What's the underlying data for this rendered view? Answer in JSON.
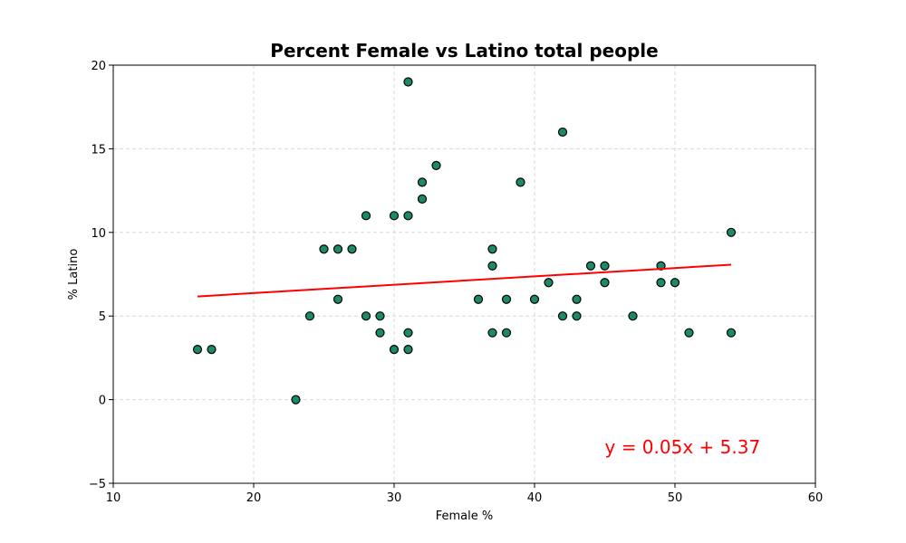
{
  "chart_data": {
    "type": "scatter",
    "title": "Percent Female vs Latino total people",
    "xlabel": "Female %",
    "ylabel": "% Latino",
    "xlim": [
      10,
      60
    ],
    "ylim": [
      -5,
      20
    ],
    "xticks": [
      "10",
      "20",
      "30",
      "40",
      "50",
      "60"
    ],
    "yticks": [
      "−5",
      "0",
      "5",
      "10",
      "15",
      "20"
    ],
    "grid": true,
    "point_color": "#1a8a6a",
    "point_edge_color": "#000000",
    "line_color": "#ff0000",
    "points": [
      {
        "x": 16,
        "y": 3
      },
      {
        "x": 17,
        "y": 3
      },
      {
        "x": 23,
        "y": 0
      },
      {
        "x": 24,
        "y": 5
      },
      {
        "x": 25,
        "y": 9
      },
      {
        "x": 26,
        "y": 9
      },
      {
        "x": 26,
        "y": 6
      },
      {
        "x": 27,
        "y": 9
      },
      {
        "x": 28,
        "y": 11
      },
      {
        "x": 28,
        "y": 5
      },
      {
        "x": 29,
        "y": 5
      },
      {
        "x": 29,
        "y": 4
      },
      {
        "x": 30,
        "y": 11
      },
      {
        "x": 30,
        "y": 3
      },
      {
        "x": 31,
        "y": 19
      },
      {
        "x": 31,
        "y": 11
      },
      {
        "x": 31,
        "y": 4
      },
      {
        "x": 31,
        "y": 3
      },
      {
        "x": 32,
        "y": 13
      },
      {
        "x": 32,
        "y": 12
      },
      {
        "x": 33,
        "y": 14
      },
      {
        "x": 36,
        "y": 6
      },
      {
        "x": 37,
        "y": 9
      },
      {
        "x": 37,
        "y": 8
      },
      {
        "x": 37,
        "y": 4
      },
      {
        "x": 38,
        "y": 6
      },
      {
        "x": 38,
        "y": 4
      },
      {
        "x": 39,
        "y": 13
      },
      {
        "x": 40,
        "y": 6
      },
      {
        "x": 41,
        "y": 7
      },
      {
        "x": 42,
        "y": 16
      },
      {
        "x": 42,
        "y": 5
      },
      {
        "x": 43,
        "y": 6
      },
      {
        "x": 43,
        "y": 5
      },
      {
        "x": 44,
        "y": 8
      },
      {
        "x": 45,
        "y": 8
      },
      {
        "x": 45,
        "y": 7
      },
      {
        "x": 47,
        "y": 5
      },
      {
        "x": 49,
        "y": 8
      },
      {
        "x": 49,
        "y": 7
      },
      {
        "x": 50,
        "y": 7
      },
      {
        "x": 51,
        "y": 4
      },
      {
        "x": 54,
        "y": 10
      },
      {
        "x": 54,
        "y": 4
      }
    ],
    "regression": {
      "slope": 0.05,
      "intercept": 5.37,
      "x_start": 16,
      "x_end": 54
    },
    "annotation": {
      "text": "y = 0.05x + 5.37",
      "x": 45,
      "y": -3
    }
  }
}
